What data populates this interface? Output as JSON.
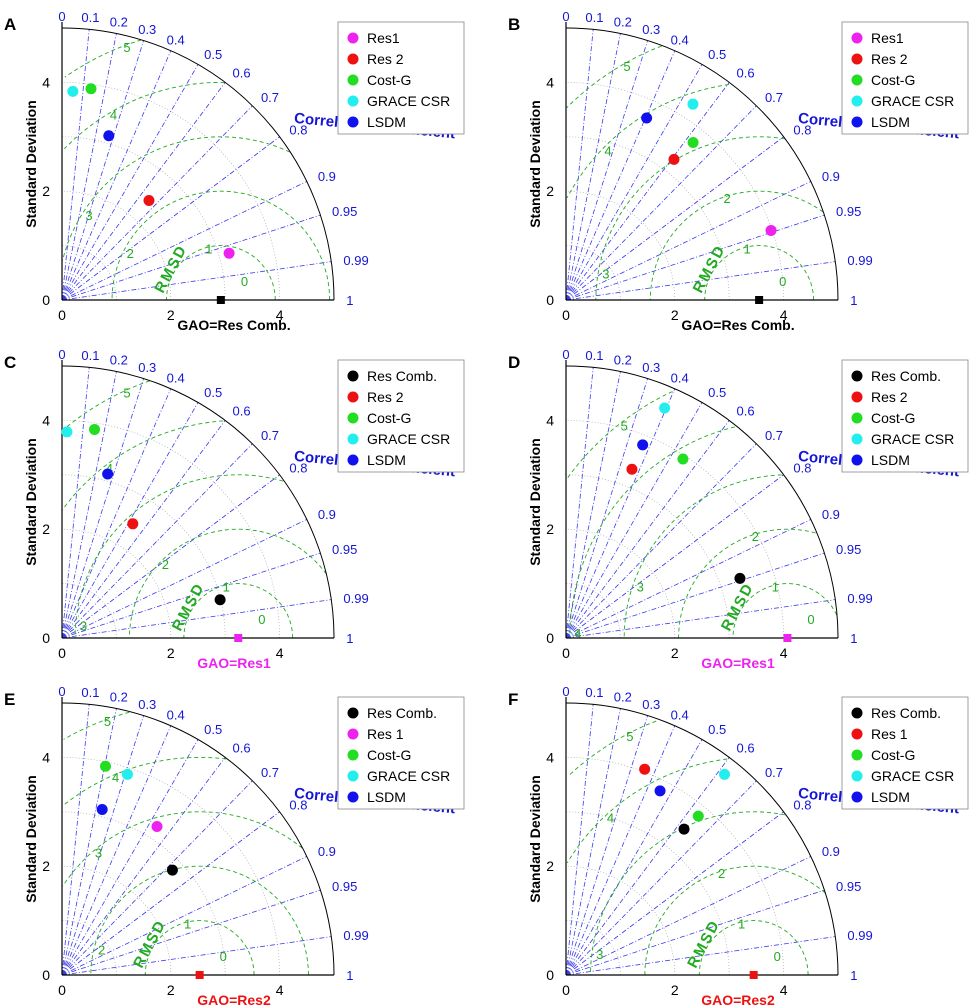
{
  "figure": {
    "ylabel": "Standard Deviation",
    "corr_title": "Correlation Coefficient",
    "rmsd_label": "RMSD",
    "corr_ticks": [
      "0",
      "0.1",
      "0.2",
      "0.3",
      "0.4",
      "0.5",
      "0.6",
      "0.7",
      "0.8",
      "0.9",
      "0.95",
      "0.99",
      "1"
    ],
    "colors": {
      "axis": "#000000",
      "grid_circle": "#aaaaaa",
      "corr_line": "#3a3aee",
      "corr_text": "#1515d8",
      "rmsd": "#22aa22",
      "legend_border": "#888888"
    }
  },
  "chart_data": [
    {
      "type": "scatter",
      "subtype": "taylor-diagram",
      "panel": "A",
      "xlabel": "GAO=Res Comb.",
      "xlabel_color": "#000000",
      "std_ticks": [
        "0",
        "2",
        "4"
      ],
      "std_max": 5,
      "reference": {
        "name": "GAO=Res Comb.",
        "std": 2.92,
        "color": "#000000",
        "marker": "square"
      },
      "rmsd_contours": [
        {
          "value": 1,
          "label": "1"
        },
        {
          "value": 2,
          "label": "2"
        },
        {
          "value": 3,
          "label": "3"
        },
        {
          "value": 4,
          "label": "4"
        },
        {
          "value": 5,
          "label": "5"
        }
      ],
      "rmsd_zero_label": "0",
      "series": [
        {
          "name": "Res1",
          "color": "#ee22ee",
          "std": 3.19,
          "corr": 0.963
        },
        {
          "name": "Res 2",
          "color": "#ee1111",
          "std": 2.43,
          "corr": 0.658
        },
        {
          "name": "Cost-G",
          "color": "#22dd22",
          "std": 3.92,
          "corr": 0.136
        },
        {
          "name": "GRACE CSR",
          "color": "#22eeee",
          "std": 3.84,
          "corr": 0.052
        },
        {
          "name": "LSDM",
          "color": "#1111ee",
          "std": 3.14,
          "corr": 0.274
        }
      ]
    },
    {
      "type": "scatter",
      "subtype": "taylor-diagram",
      "panel": "B",
      "xlabel": "GAO=Res Comb.",
      "xlabel_color": "#000000",
      "std_ticks": [
        "0",
        "2",
        "4"
      ],
      "std_max": 5,
      "reference": {
        "name": "GAO=Res Comb.",
        "std": 3.55,
        "color": "#000000",
        "marker": "square"
      },
      "rmsd_contours": [
        {
          "value": 1,
          "label": "1"
        },
        {
          "value": 2,
          "label": "2"
        },
        {
          "value": 3,
          "label": "3"
        },
        {
          "value": 4,
          "label": "4"
        },
        {
          "value": 5,
          "label": "5"
        }
      ],
      "rmsd_zero_label": "0",
      "series": [
        {
          "name": "Res1",
          "color": "#ee22ee",
          "std": 3.98,
          "corr": 0.947
        },
        {
          "name": "Res 2",
          "color": "#ee1111",
          "std": 3.26,
          "corr": 0.609
        },
        {
          "name": "Cost-G",
          "color": "#22dd22",
          "std": 3.72,
          "corr": 0.628
        },
        {
          "name": "GRACE CSR",
          "color": "#22eeee",
          "std": 4.29,
          "corr": 0.544
        },
        {
          "name": "LSDM",
          "color": "#1111ee",
          "std": 3.66,
          "corr": 0.405
        }
      ]
    },
    {
      "type": "scatter",
      "subtype": "taylor-diagram",
      "panel": "C",
      "xlabel": "GAO=Res1",
      "xlabel_color": "#ee22ee",
      "std_ticks": [
        "0",
        "2",
        "4"
      ],
      "std_max": 5,
      "reference": {
        "name": "GAO=Res1",
        "std": 3.24,
        "color": "#ee22ee",
        "marker": "square"
      },
      "rmsd_contours": [
        {
          "value": 1,
          "label": "1"
        },
        {
          "value": 2,
          "label": "2"
        },
        {
          "value": 3,
          "label": "3"
        },
        {
          "value": 4,
          "label": "4"
        },
        {
          "value": 5,
          "label": "5"
        }
      ],
      "rmsd_zero_label": "0",
      "series": [
        {
          "name": "Res Comb.",
          "color": "#000000",
          "std": 2.99,
          "corr": 0.972
        },
        {
          "name": "Res 2",
          "color": "#ee1111",
          "std": 2.47,
          "corr": 0.527
        },
        {
          "name": "Cost-G",
          "color": "#22dd22",
          "std": 3.88,
          "corr": 0.154
        },
        {
          "name": "GRACE CSR",
          "color": "#22eeee",
          "std": 3.79,
          "corr": 0.024
        },
        {
          "name": "LSDM",
          "color": "#1111ee",
          "std": 3.13,
          "corr": 0.268
        }
      ]
    },
    {
      "type": "scatter",
      "subtype": "taylor-diagram",
      "panel": "D",
      "xlabel": "GAO=Res1",
      "xlabel_color": "#ee22ee",
      "std_ticks": [
        "0",
        "2",
        "4"
      ],
      "std_max": 5,
      "reference": {
        "name": "GAO=Res1",
        "std": 4.07,
        "color": "#ee22ee",
        "marker": "square"
      },
      "rmsd_contours": [
        {
          "value": 1,
          "label": "1"
        },
        {
          "value": 2,
          "label": "2"
        },
        {
          "value": 3,
          "label": "3"
        },
        {
          "value": 4,
          "label": "4"
        },
        {
          "value": 5,
          "label": "5"
        }
      ],
      "rmsd_zero_label": "0",
      "series": [
        {
          "name": "Res Comb.",
          "color": "#000000",
          "std": 3.38,
          "corr": 0.946
        },
        {
          "name": "Res 2",
          "color": "#ee1111",
          "std": 3.33,
          "corr": 0.364
        },
        {
          "name": "Cost-G",
          "color": "#22dd22",
          "std": 3.93,
          "corr": 0.547
        },
        {
          "name": "GRACE CSR",
          "color": "#22eeee",
          "std": 4.6,
          "corr": 0.394
        },
        {
          "name": "LSDM",
          "color": "#1111ee",
          "std": 3.82,
          "corr": 0.369
        }
      ]
    },
    {
      "type": "scatter",
      "subtype": "taylor-diagram",
      "panel": "E",
      "xlabel": "GAO=Res2",
      "xlabel_color": "#ee1111",
      "std_ticks": [
        "0",
        "2",
        "4"
      ],
      "std_max": 5,
      "reference": {
        "name": "GAO=Res2",
        "std": 2.53,
        "color": "#ee1111",
        "marker": "square"
      },
      "rmsd_contours": [
        {
          "value": 1,
          "label": "1"
        },
        {
          "value": 2,
          "label": "2"
        },
        {
          "value": 3,
          "label": "3"
        },
        {
          "value": 4,
          "label": "4"
        },
        {
          "value": 5,
          "label": "5"
        }
      ],
      "rmsd_zero_label": "0",
      "series": [
        {
          "name": "Res Comb.",
          "color": "#000000",
          "std": 2.8,
          "corr": 0.725
        },
        {
          "name": "Res 1",
          "color": "#ee22ee",
          "std": 3.24,
          "corr": 0.539
        },
        {
          "name": "Cost-G",
          "color": "#22dd22",
          "std": 3.92,
          "corr": 0.204
        },
        {
          "name": "GRACE CSR",
          "color": "#22eeee",
          "std": 3.88,
          "corr": 0.31
        },
        {
          "name": "LSDM",
          "color": "#1111ee",
          "std": 3.13,
          "corr": 0.236
        }
      ]
    },
    {
      "type": "scatter",
      "subtype": "taylor-diagram",
      "panel": "F",
      "xlabel": "GAO=Res2",
      "xlabel_color": "#ee1111",
      "std_ticks": [
        "0",
        "2",
        "4"
      ],
      "std_max": 5,
      "reference": {
        "name": "GAO=Res2",
        "std": 3.45,
        "color": "#ee1111",
        "marker": "square"
      },
      "rmsd_contours": [
        {
          "value": 1,
          "label": "1"
        },
        {
          "value": 2,
          "label": "2"
        },
        {
          "value": 3,
          "label": "3"
        },
        {
          "value": 4,
          "label": "4"
        },
        {
          "value": 5,
          "label": "5"
        }
      ],
      "rmsd_zero_label": "0",
      "series": [
        {
          "name": "Res Comb.",
          "color": "#000000",
          "std": 3.45,
          "corr": 0.629
        },
        {
          "name": "Res 1",
          "color": "#ee1111",
          "std": 4.05,
          "corr": 0.357
        },
        {
          "name": "Cost-G",
          "color": "#22dd22",
          "std": 3.8,
          "corr": 0.64
        },
        {
          "name": "GRACE CSR",
          "color": "#22eeee",
          "std": 4.7,
          "corr": 0.62
        },
        {
          "name": "LSDM",
          "color": "#1111ee",
          "std": 3.8,
          "corr": 0.455
        }
      ]
    }
  ]
}
